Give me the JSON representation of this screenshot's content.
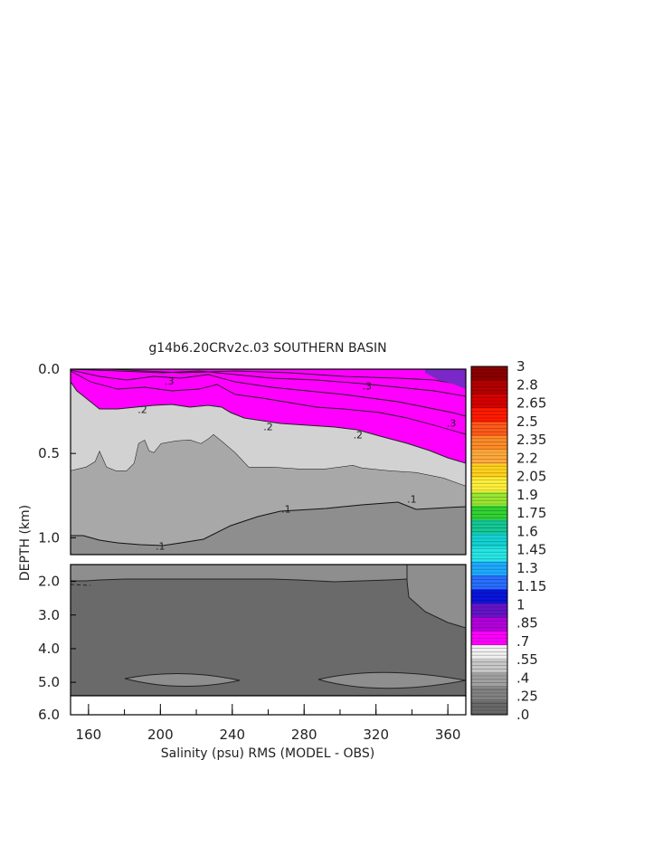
{
  "chart_data": {
    "type": "heatmap",
    "title": "g14b6.20CRv2c.03 SOUTHERN BASIN",
    "xlabel": "Salinity (psu) RMS (MODEL - OBS)",
    "ylabel": "DEPTH (km)",
    "xlim": [
      150,
      370
    ],
    "x_ticks": [
      "160",
      "200",
      "240",
      "280",
      "320",
      "360"
    ],
    "upper_panel": {
      "ylim": [
        0.0,
        1.1
      ],
      "y_ticks": [
        "0.0",
        "0.5",
        "1.0"
      ]
    },
    "lower_panel": {
      "ylim": [
        1.5,
        5.4
      ],
      "y_ticks": [
        "2.0",
        "3.0",
        "4.0",
        "5.0"
      ]
    },
    "axis_bottom_tick": "6.0",
    "contour_labels": [
      {
        "text": ".3",
        "x": 205,
        "y": 0.07,
        "panel": "upper"
      },
      {
        "text": ".2",
        "x": 190,
        "y": 0.24,
        "panel": "upper"
      },
      {
        "text": ".2",
        "x": 260,
        "y": 0.34,
        "panel": "upper"
      },
      {
        "text": ".3",
        "x": 315,
        "y": 0.1,
        "panel": "upper"
      },
      {
        "text": ".2",
        "x": 310,
        "y": 0.39,
        "panel": "upper"
      },
      {
        "text": ".3",
        "x": 362,
        "y": 0.32,
        "panel": "upper"
      },
      {
        "text": ".1",
        "x": 200,
        "y": 1.05,
        "panel": "upper"
      },
      {
        "text": ".1",
        "x": 270,
        "y": 0.83,
        "panel": "upper"
      },
      {
        "text": ".1",
        "x": 340,
        "y": 0.77,
        "panel": "upper"
      }
    ],
    "colorbar": {
      "labels": [
        "3",
        "2.8",
        "2.65",
        "2.5",
        "2.35",
        "2.2",
        "2.05",
        "1.9",
        "1.75",
        "1.6",
        "1.45",
        "1.3",
        "1.15",
        "1",
        ".85",
        ".7",
        ".55",
        ".4",
        ".25",
        ".0"
      ],
      "colors": [
        "#8c0000",
        "#b40000",
        "#d70000",
        "#ff1a00",
        "#ff5a1a",
        "#ff8c28",
        "#ffaa3c",
        "#ffd21e",
        "#fff03c",
        "#9ae632",
        "#32d232",
        "#14c896",
        "#14d2d2",
        "#28e6e6",
        "#1eaaff",
        "#286eff",
        "#0a14dc",
        "#6414c8",
        "#b400dc",
        "#ff00ff",
        "#f0f0f0",
        "#c8c8c8",
        "#a0a0a0",
        "#828282",
        "#696969"
      ],
      "legend_position": "right"
    }
  }
}
